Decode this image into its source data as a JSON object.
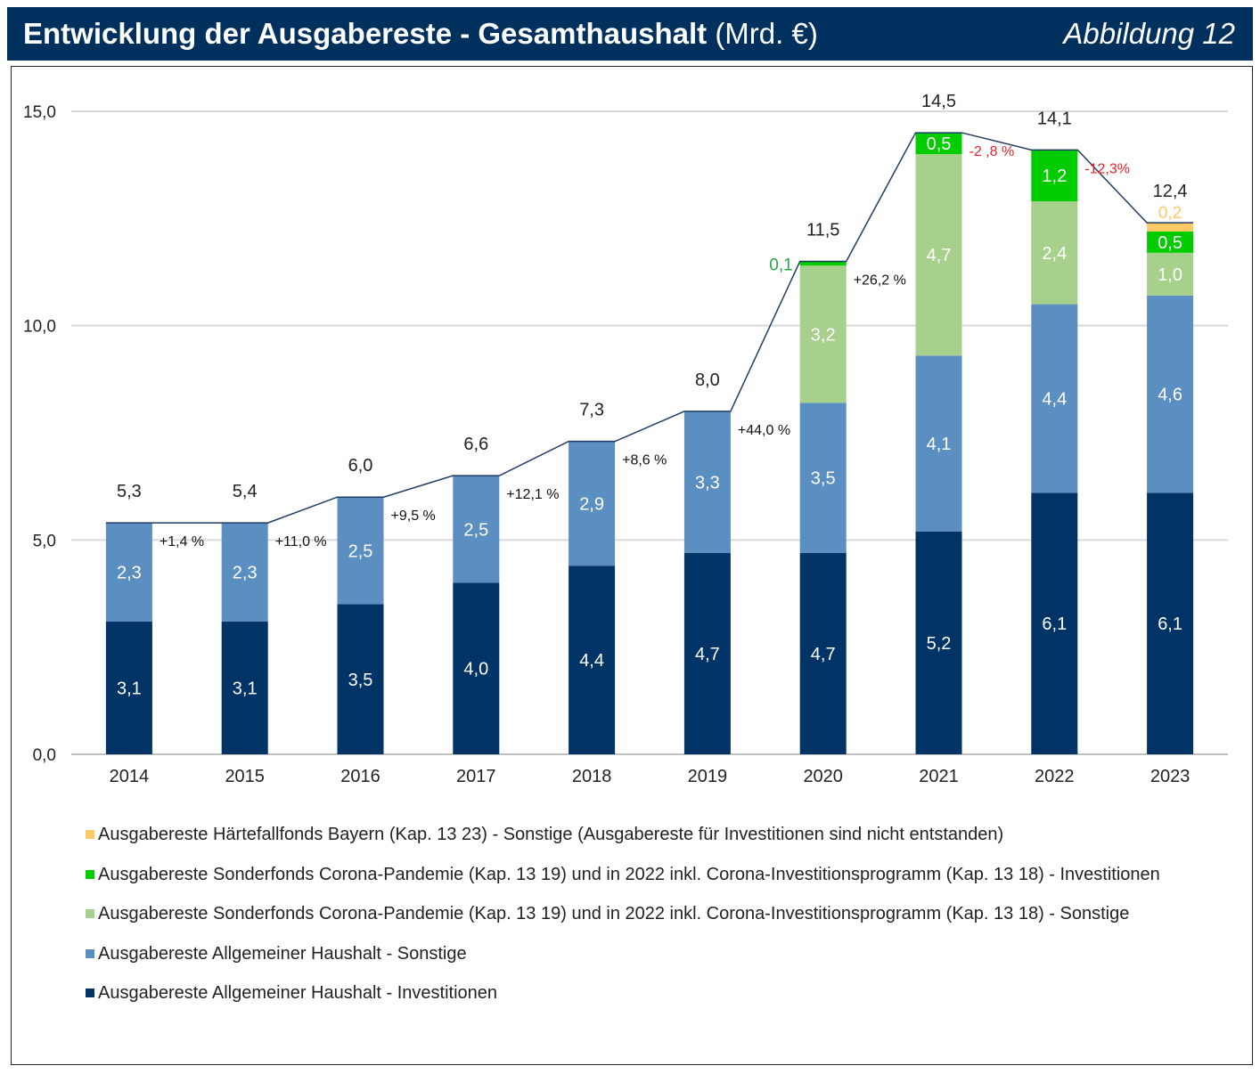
{
  "header": {
    "title_bold": "Entwicklung der Ausgabereste - Gesamthaushalt",
    "title_unit": "(Mrd. €)",
    "figure_label": "Abbildung 12"
  },
  "colors": {
    "header_bg": "#00305e",
    "investitionen": "#003366",
    "allgemein_sonstige": "#5b8ec1",
    "corona_sonstige": "#a8d08d",
    "corona_investitionen": "#00cc00",
    "haertefall": "#ffc966",
    "line": "#1f3b64",
    "negative": "#e8202a"
  },
  "chart_data": {
    "type": "bar",
    "stacked": true,
    "categories": [
      "2014",
      "2015",
      "2016",
      "2017",
      "2018",
      "2019",
      "2020",
      "2021",
      "2022",
      "2023"
    ],
    "ylim": [
      0,
      15
    ],
    "yticks": [
      "0,0",
      "5,0",
      "10,0",
      "15,0"
    ],
    "grid": true,
    "series": [
      {
        "name": "Ausgabereste Allgemeiner Haushalt - Investitionen",
        "values": [
          3.1,
          3.1,
          3.5,
          4.0,
          4.4,
          4.7,
          4.7,
          5.2,
          6.1,
          6.1
        ],
        "labels": [
          "3,1",
          "3,1",
          "3,5",
          "4,0",
          "4,4",
          "4,7",
          "4,7",
          "5,2",
          "6,1",
          "6,1"
        ]
      },
      {
        "name": "Ausgabereste Allgemeiner Haushalt - Sonstige",
        "values": [
          2.3,
          2.3,
          2.5,
          2.5,
          2.9,
          3.3,
          3.5,
          4.1,
          4.4,
          4.6
        ],
        "labels": [
          "2,3",
          "2,3",
          "2,5",
          "2,5",
          "2,9",
          "3,3",
          "3,5",
          "4,1",
          "4,4",
          "4,6"
        ]
      },
      {
        "name": "Ausgabereste Sonderfonds Corona-Pandemie (Kap. 13 19) und in 2022 inkl. Corona-Investitionsprogramm (Kap. 13 18) - Sonstige",
        "values": [
          0,
          0,
          0,
          0,
          0,
          0,
          3.2,
          4.7,
          2.4,
          1.0
        ],
        "labels": [
          "",
          "",
          "",
          "",
          "",
          "",
          "3,2",
          "4,7",
          "2,4",
          "1,0"
        ]
      },
      {
        "name": "Ausgabereste Sonderfonds Corona-Pandemie (Kap. 13 19) und in 2022 inkl. Corona-Investitionsprogramm (Kap. 13 18) - Investitionen",
        "values": [
          0,
          0,
          0,
          0,
          0,
          0,
          0.1,
          0.5,
          1.2,
          0.5
        ],
        "labels": [
          "",
          "",
          "",
          "",
          "",
          "",
          "0,1",
          "0,5",
          "1,2",
          "0,5"
        ]
      },
      {
        "name": "Ausgabereste Härtefallfonds Bayern (Kap. 13 23) - Sonstige (Ausgabereste für Investitionen sind nicht entstanden)",
        "values": [
          0,
          0,
          0,
          0,
          0,
          0,
          0,
          0,
          0,
          0.2
        ],
        "labels": [
          "",
          "",
          "",
          "",
          "",
          "",
          "",
          "",
          "",
          "0,2"
        ]
      }
    ],
    "totals": [
      5.3,
      5.4,
      6.0,
      6.6,
      7.3,
      8.0,
      11.5,
      14.5,
      14.1,
      12.4
    ],
    "total_labels": [
      "5,3",
      "5,4",
      "6,0",
      "6,6",
      "7,3",
      "8,0",
      "11,5",
      "14,5",
      "14,1",
      "12,4"
    ],
    "growth_labels": [
      "+1,4 %",
      "+11,0 %",
      "+9,5 %",
      "+12,1 %",
      "+8,6 %",
      "+44,0 %",
      "+26,2 %",
      "-2 ,8 %",
      "-12,3%"
    ],
    "legend_order": [
      4,
      3,
      2,
      1,
      0
    ]
  }
}
